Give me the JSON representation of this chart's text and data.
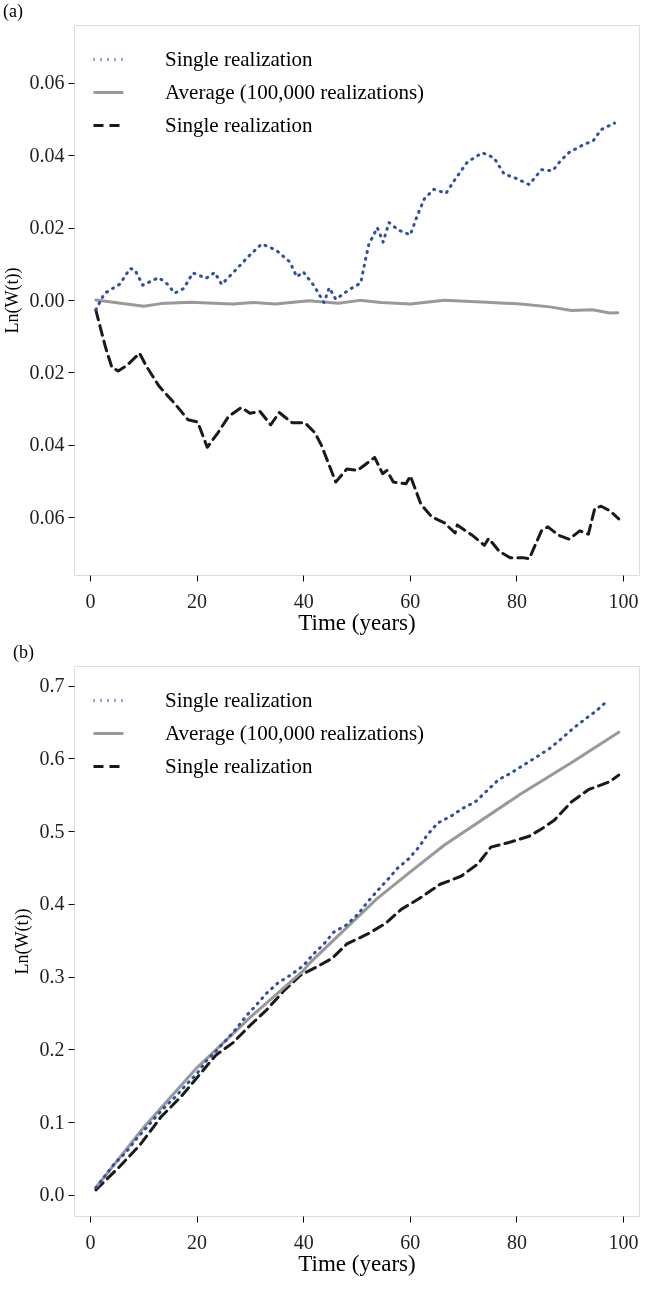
{
  "chart_data": [
    {
      "type": "line",
      "title": "(a)",
      "xlabel": "Time (years)",
      "ylabel": "Ln(W(t))",
      "xlim": [
        -3,
        103
      ],
      "ylim": [
        -0.076,
        0.076
      ],
      "xticks": [
        0,
        20,
        40,
        60,
        80,
        100
      ],
      "yticks": [
        {
          "value": -0.06,
          "label": "0.06"
        },
        {
          "value": -0.04,
          "label": "0.04"
        },
        {
          "value": -0.02,
          "label": "0.02"
        },
        {
          "value": 0,
          "label": "0.00"
        },
        {
          "value": 0.02,
          "label": "0.02"
        },
        {
          "value": 0.04,
          "label": "0.04"
        },
        {
          "value": 0.06,
          "label": "0.06"
        }
      ],
      "grid": false,
      "legend": "top left",
      "series": [
        {
          "name": "Single realization",
          "color": "#2e4fa8",
          "line_style": "dotted",
          "x": [
            1.1,
            2.7,
            5.6,
            7.5,
            8.4,
            9.9,
            12.9,
            14.5,
            15.9,
            17.6,
            19.3,
            21.8,
            23.4,
            24.7,
            27.2,
            29.7,
            32.2,
            34.9,
            37.5,
            38.8,
            40.0,
            42.0,
            43.9,
            44.9,
            46.1,
            48.9,
            50.8,
            51.5,
            52.3,
            53.9,
            55.0,
            56.1,
            57.9,
            60.1,
            61.3,
            62.7,
            64.5,
            66.8,
            68.7,
            70.8,
            73.6,
            75.8,
            77.7,
            79.8,
            82.4,
            84.7,
            86.8,
            88.3,
            89.9,
            92.7,
            94.4,
            95.9,
            98.4
          ],
          "values": [
            -0.0027,
            0.0018,
            0.0044,
            0.0087,
            0.0084,
            0.0041,
            0.0062,
            0.0044,
            0.0019,
            0.0032,
            0.0075,
            0.006,
            0.0076,
            0.0043,
            0.0081,
            0.012,
            0.0155,
            0.0138,
            0.0105,
            0.0064,
            0.0078,
            0.004,
            -0.0007,
            0.0034,
            0.0002,
            0.0031,
            0.0047,
            0.0099,
            0.0153,
            0.02,
            0.016,
            0.0214,
            0.0193,
            0.018,
            0.0229,
            0.0279,
            0.0306,
            0.0295,
            0.0338,
            0.0381,
            0.0407,
            0.0393,
            0.0348,
            0.0337,
            0.0319,
            0.036,
            0.0357,
            0.0385,
            0.0408,
            0.043,
            0.044,
            0.0471,
            0.0489
          ]
        },
        {
          "name": "Average (100,000 realizations)",
          "color": "#999999",
          "line_style": "solid",
          "x": [
            1.1,
            10.1,
            13.3,
            18.8,
            26.8,
            30.7,
            34.7,
            41.1,
            46.6,
            50.6,
            54.6,
            60.1,
            66.5,
            74.4,
            80.8,
            86.3,
            90.3,
            94.3,
            97.5,
            99.0
          ],
          "values": [
            0.0,
            -0.0017,
            -0.001,
            -0.0006,
            -0.0011,
            -0.0007,
            -0.0011,
            -0.0002,
            -0.0009,
            -0.0001,
            -0.0007,
            -0.0011,
            -0.0001,
            -0.0006,
            -0.0011,
            -0.0019,
            -0.0029,
            -0.0027,
            -0.0036,
            -0.0035
          ]
        },
        {
          "name": "Single realization",
          "color": "#1a1a1a",
          "line_style": "dashed",
          "x": [
            1.1,
            2.9,
            4.1,
            5.3,
            6.9,
            9.3,
            10.5,
            12.9,
            16.0,
            18.4,
            20.2,
            22.0,
            24.0,
            26.0,
            28.4,
            30.0,
            31.9,
            33.9,
            35.5,
            37.9,
            40.3,
            42.2,
            43.4,
            44.6,
            46.1,
            48.2,
            50.2,
            53.4,
            54.9,
            55.7,
            56.9,
            59.3,
            60.1,
            62.1,
            64.1,
            66.5,
            68.5,
            68.9,
            71.7,
            74.0,
            74.8,
            76.8,
            78.8,
            81.2,
            82.4,
            84.7,
            85.9,
            87.9,
            89.9,
            91.9,
            93.5,
            94.7,
            95.9,
            97.5,
            99.2
          ],
          "values": [
            -0.0028,
            -0.013,
            -0.0186,
            -0.0196,
            -0.0181,
            -0.0147,
            -0.0181,
            -0.0237,
            -0.0288,
            -0.0331,
            -0.0337,
            -0.0407,
            -0.0367,
            -0.0322,
            -0.0297,
            -0.0313,
            -0.0308,
            -0.0345,
            -0.0311,
            -0.0339,
            -0.0339,
            -0.0367,
            -0.0401,
            -0.0446,
            -0.0503,
            -0.0467,
            -0.0471,
            -0.0435,
            -0.048,
            -0.0471,
            -0.0503,
            -0.0508,
            -0.0486,
            -0.0565,
            -0.0599,
            -0.0616,
            -0.0644,
            -0.0622,
            -0.065,
            -0.0678,
            -0.0659,
            -0.0695,
            -0.0712,
            -0.0712,
            -0.0715,
            -0.0638,
            -0.0627,
            -0.065,
            -0.0661,
            -0.0638,
            -0.0647,
            -0.0576,
            -0.057,
            -0.0582,
            -0.0605
          ]
        }
      ]
    },
    {
      "type": "line",
      "title": "(b)",
      "xlabel": "Time (years)",
      "ylabel": "Ln(W(t))",
      "xlim": [
        -3,
        103
      ],
      "ylim": [
        -0.029,
        0.727
      ],
      "xticks": [
        0,
        20,
        40,
        60,
        80,
        100
      ],
      "yticks": [
        {
          "value": 0,
          "label": "0.0"
        },
        0.1,
        0.2,
        0.3,
        0.4,
        0.5,
        0.6,
        0.7
      ],
      "grid": false,
      "legend": "top left",
      "series": [
        {
          "name": "Single realization",
          "color": "#2e4fa8",
          "line_style": "dotted",
          "x": [
            1.1,
            2.9,
            4.7,
            6.7,
            8.5,
            10.3,
            12.2,
            14.2,
            16.2,
            18.0,
            20.1,
            21.8,
            23.7,
            25.7,
            27.5,
            29.3,
            31.2,
            33.1,
            35.2,
            37.6,
            40.0,
            41.9,
            43.9,
            45.7,
            48.1,
            50.3,
            52.0,
            53.9,
            55.8,
            57.7,
            59.8,
            61.7,
            63.3,
            65.2,
            67.8,
            70.1,
            72.4,
            74.4,
            76.7,
            79.0,
            81.6,
            84.0,
            86.3,
            88.6,
            90.6,
            92.9,
            95.1,
            97.2
          ],
          "values": [
            0.01,
            0.027,
            0.044,
            0.058,
            0.075,
            0.09,
            0.106,
            0.122,
            0.136,
            0.151,
            0.167,
            0.184,
            0.198,
            0.214,
            0.229,
            0.246,
            0.261,
            0.277,
            0.291,
            0.302,
            0.315,
            0.331,
            0.345,
            0.361,
            0.371,
            0.386,
            0.402,
            0.418,
            0.433,
            0.449,
            0.462,
            0.478,
            0.495,
            0.511,
            0.521,
            0.532,
            0.541,
            0.555,
            0.571,
            0.58,
            0.592,
            0.603,
            0.614,
            0.628,
            0.641,
            0.654,
            0.666,
            0.68
          ]
        },
        {
          "name": "Average (100,000 realizations)",
          "color": "#999999",
          "line_style": "solid",
          "x": [
            1.1,
            10.1,
            20.1,
            29.9,
            40.0,
            41.1,
            53.8,
            60.1,
            66.5,
            80.8,
            90.3,
            99.2
          ],
          "values": [
            0.01,
            0.093,
            0.175,
            0.243,
            0.308,
            0.318,
            0.407,
            0.444,
            0.481,
            0.551,
            0.594,
            0.636
          ]
        },
        {
          "name": "Single realization",
          "color": "#1a1a1a",
          "line_style": "dashed",
          "x": [
            1.1,
            5.3,
            9.3,
            13.3,
            17.2,
            20.4,
            23.6,
            26.8,
            29.9,
            33.1,
            36.3,
            39.5,
            42.7,
            45.4,
            48.2,
            52.2,
            55.4,
            58.5,
            61.7,
            65.7,
            69.6,
            72.8,
            75.2,
            78.4,
            82.4,
            84.7,
            87.1,
            90.3,
            93.5,
            97.5,
            99.2
          ],
          "values": [
            0.007,
            0.037,
            0.068,
            0.107,
            0.136,
            0.164,
            0.192,
            0.209,
            0.232,
            0.254,
            0.28,
            0.302,
            0.314,
            0.325,
            0.345,
            0.359,
            0.373,
            0.393,
            0.407,
            0.427,
            0.438,
            0.455,
            0.478,
            0.484,
            0.493,
            0.503,
            0.515,
            0.54,
            0.557,
            0.568,
            0.577
          ]
        }
      ]
    }
  ]
}
